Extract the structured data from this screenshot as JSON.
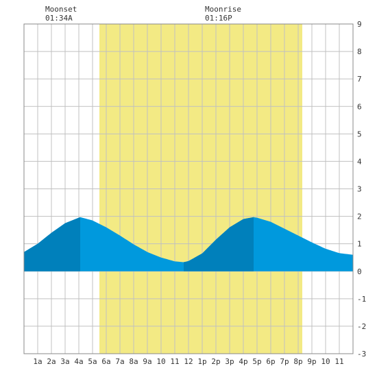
{
  "chart_data": {
    "type": "area",
    "title": "",
    "xlabel": "",
    "ylabel": "",
    "x_ticks": [
      "1a",
      "2a",
      "3a",
      "4a",
      "5a",
      "6a",
      "7a",
      "8a",
      "9a",
      "10",
      "11",
      "12",
      "1p",
      "2p",
      "3p",
      "4p",
      "5p",
      "6p",
      "7p",
      "8p",
      "9p",
      "10",
      "11"
    ],
    "y_ticks": [
      "9",
      "8",
      "7",
      "6",
      "5",
      "4",
      "3",
      "2",
      "1",
      "0",
      "-1",
      "-2",
      "-3"
    ],
    "xlim": [
      0,
      24
    ],
    "ylim": [
      -3,
      9
    ],
    "grid": true,
    "daylight_hours": [
      5.5,
      20.3
    ],
    "rising_shading_hours": [
      [
        0,
        4.1
      ],
      [
        11.65,
        16.75
      ]
    ],
    "series": [
      {
        "x": [
          0,
          1,
          2,
          3,
          4.1,
          5,
          6,
          7,
          8,
          9,
          10,
          11,
          11.65,
          12,
          13,
          14,
          15,
          16,
          16.75,
          17,
          18,
          19,
          20,
          21,
          22,
          23,
          24
        ],
        "y": [
          0.7,
          1.0,
          1.4,
          1.75,
          1.97,
          1.85,
          1.6,
          1.3,
          0.98,
          0.7,
          0.5,
          0.36,
          0.33,
          0.37,
          0.65,
          1.15,
          1.6,
          1.9,
          1.97,
          1.95,
          1.8,
          1.55,
          1.3,
          1.05,
          0.82,
          0.66,
          0.6
        ]
      }
    ],
    "annotations": [
      {
        "label": "Moonset",
        "time": "01:34A",
        "hour": 3.0
      },
      {
        "label": "Moonrise",
        "time": "01:16P",
        "hour": 13.6
      }
    ],
    "colors": {
      "daylight": "#f3ea84",
      "tide_falling": "#0099dd",
      "tide_rising": "#0080bb",
      "grid": "#c0c0c0",
      "axis": "#888888",
      "text": "#333333"
    }
  }
}
